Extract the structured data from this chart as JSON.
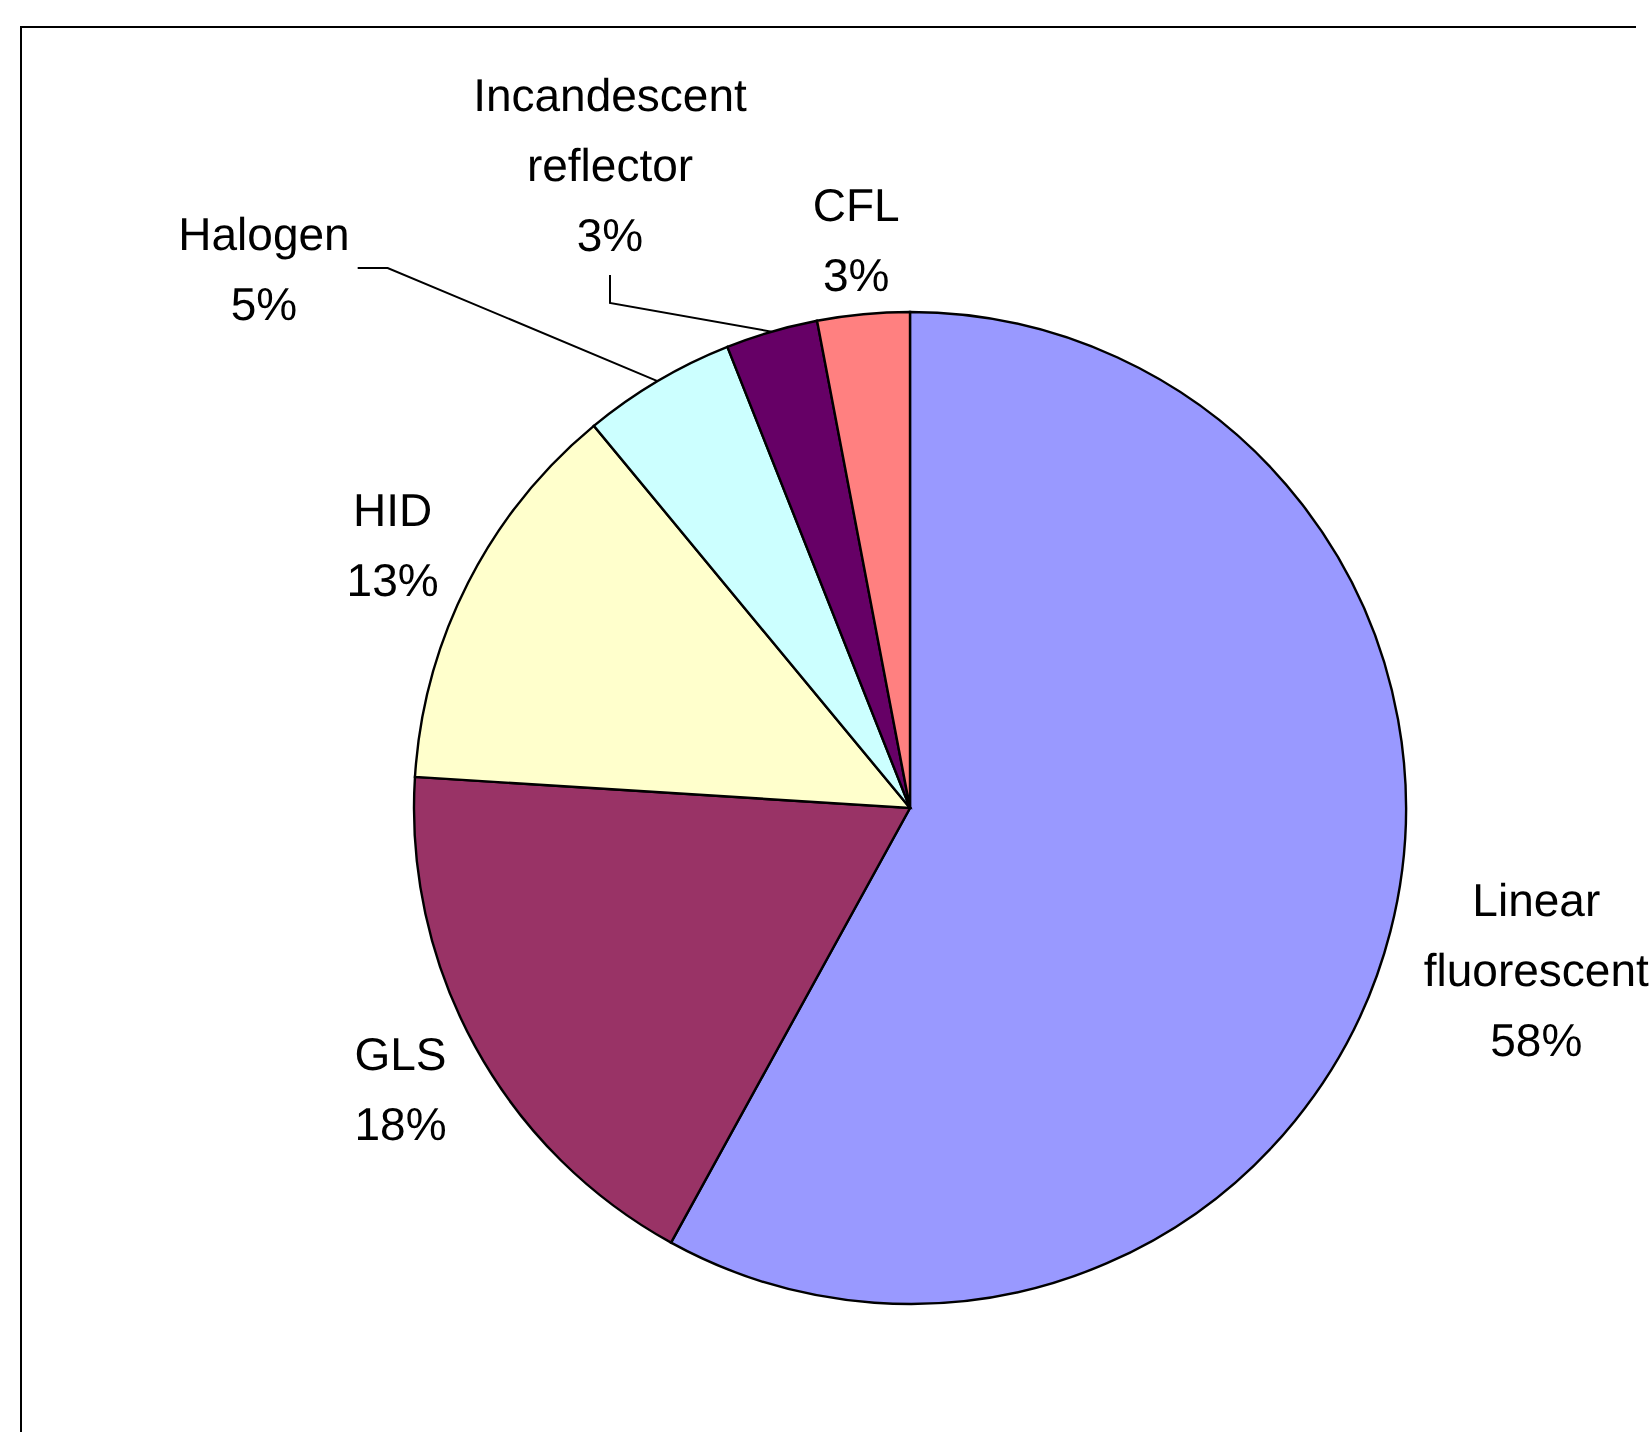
{
  "chart_data": {
    "type": "pie",
    "categories": [
      "Linear fluorescent",
      "GLS",
      "HID",
      "Halogen",
      "Incandescent reflector",
      "CFL"
    ],
    "values": [
      58,
      18,
      13,
      5,
      3,
      3
    ],
    "colors": [
      "#9999ff",
      "#993366",
      "#ffffcc",
      "#ccffff",
      "#660066",
      "#ff8080"
    ],
    "value_labels": [
      "58%",
      "18%",
      "13%",
      "5%",
      "3%",
      "3%"
    ]
  }
}
